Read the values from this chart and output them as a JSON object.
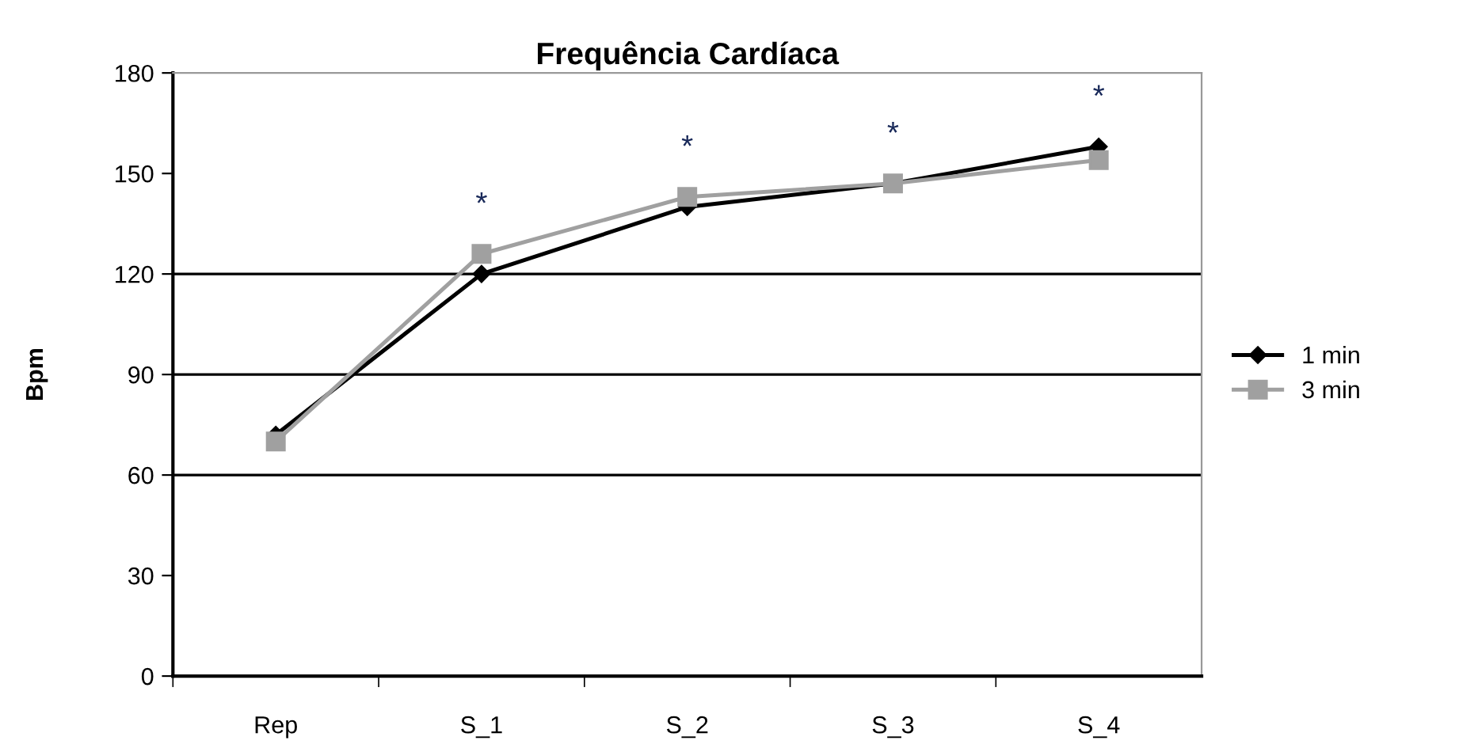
{
  "chart_data": {
    "type": "line",
    "title": "Frequência Cardíaca",
    "ylabel": "Bpm",
    "categories": [
      "Rep",
      "S_1",
      "S_2",
      "S_3",
      "S_4"
    ],
    "series": [
      {
        "name": "1 min",
        "color": "#000000",
        "marker": "diamond",
        "values": [
          72,
          120,
          140,
          147,
          158
        ]
      },
      {
        "name": "3 min",
        "color": "#a0a0a0",
        "marker": "square",
        "values": [
          70,
          126,
          143,
          147,
          154
        ]
      }
    ],
    "ylim": [
      0,
      180
    ],
    "yticks": [
      0,
      30,
      60,
      90,
      120,
      150,
      180
    ],
    "ref_lines": [
      {
        "axis": "y",
        "value": 60,
        "color": "#000000"
      },
      {
        "axis": "y",
        "value": 90,
        "color": "#000000"
      },
      {
        "axis": "y",
        "value": 120,
        "color": "#000000"
      }
    ],
    "annotations": [
      "*",
      "*",
      "*",
      "*"
    ],
    "legend": "right",
    "grid": false,
    "line_style": "solid"
  }
}
